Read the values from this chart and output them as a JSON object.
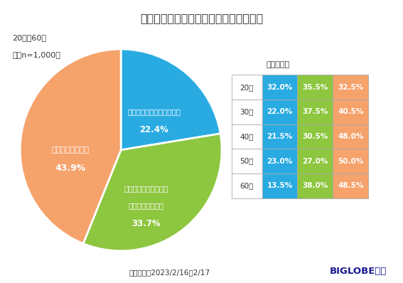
{
  "title": "温泉でタトゥー禁止が多いことについて",
  "subtitle_line1": "20代〜60代",
  "subtitle_line2": "：（n=1,000）",
  "pie_values": [
    22.4,
    33.7,
    43.9
  ],
  "pie_colors": [
    "#29ABE2",
    "#8DC63F",
    "#F5A26B"
  ],
  "pie_startangle": 90,
  "label0_line1": "時代に合わせて変容すべき",
  "label0_pct": "22.4%",
  "label1_line1": "一律ではなく、個々で",
  "label1_line2": "対応を検討すべき",
  "label1_pct": "33.7%",
  "label2_line1": "一律で禁止すべき",
  "label2_pct": "43.9%",
  "table_title": "＜年代別＞",
  "table_rows": [
    "20代",
    "30代",
    "40代",
    "50代",
    "60代"
  ],
  "table_col1": [
    32.0,
    22.0,
    21.5,
    23.0,
    13.5
  ],
  "table_col2": [
    35.5,
    37.5,
    30.5,
    27.0,
    38.0
  ],
  "table_col3": [
    32.5,
    40.5,
    48.0,
    50.0,
    48.5
  ],
  "table_col1_color": "#29ABE2",
  "table_col2_color": "#8DC63F",
  "table_col3_color": "#F5A26B",
  "footer_left": "調査期間：2023/2/16〜2/17",
  "footer_right": "BIGLOBE調べ",
  "bg_color": "#FFFFFF",
  "text_color": "#333333",
  "footer_right_color": "#1a1a8e"
}
